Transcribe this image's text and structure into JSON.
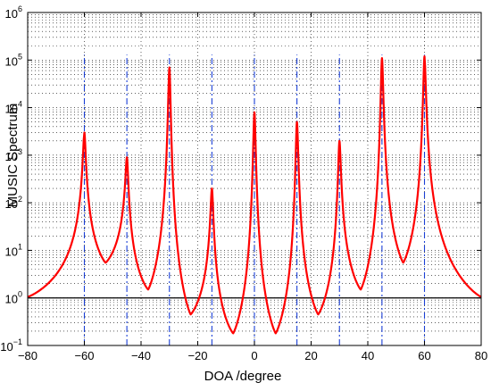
{
  "chart_data": {
    "type": "line",
    "xlabel": "DOA /degree",
    "ylabel": "MUSIC Spectrum",
    "xlim": [
      -80,
      80
    ],
    "ylim": [
      0.1,
      1000000
    ],
    "yscale": "log",
    "grid": "dotted",
    "x_ticks": [
      -80,
      -60,
      -40,
      -20,
      0,
      20,
      40,
      60,
      80
    ],
    "x_tick_labels": [
      "−80",
      "−60",
      "−40",
      "−20",
      "0",
      "20",
      "40",
      "60",
      "80"
    ],
    "y_ticks": [
      0.1,
      1,
      10,
      100,
      1000,
      10000,
      100000,
      1000000
    ],
    "y_tick_labels": [
      {
        "base": "10",
        "exp": "−1"
      },
      {
        "base": "10",
        "exp": "0"
      },
      {
        "base": "10",
        "exp": "1"
      },
      {
        "base": "10",
        "exp": "2"
      },
      {
        "base": "10",
        "exp": "3"
      },
      {
        "base": "10",
        "exp": "4"
      },
      {
        "base": "10",
        "exp": "5"
      },
      {
        "base": "10",
        "exp": "6"
      }
    ],
    "reference_line": {
      "y": 1,
      "color": "#000000"
    },
    "true_doa_lines": {
      "x": [
        -60,
        -45,
        -30,
        -15,
        0,
        15,
        30,
        45,
        60
      ],
      "y_top": 130000,
      "color": "#1a3fd6",
      "style": "dash-dot"
    },
    "spectrum": {
      "color": "#ff0000",
      "peaks": [
        {
          "x": -60,
          "y": 3000
        },
        {
          "x": -45,
          "y": 900
        },
        {
          "x": -30,
          "y": 70000
        },
        {
          "x": -15,
          "y": 200
        },
        {
          "x": 0,
          "y": 8000
        },
        {
          "x": 15,
          "y": 5000
        },
        {
          "x": 30,
          "y": 2000
        },
        {
          "x": 45,
          "y": 110000
        },
        {
          "x": 60,
          "y": 120000
        }
      ],
      "valleys": [
        {
          "x": -80,
          "y": 1.05
        },
        {
          "x": -52.5,
          "y": 5.5
        },
        {
          "x": -37.5,
          "y": 1.5
        },
        {
          "x": -22.5,
          "y": 0.45
        },
        {
          "x": -7.5,
          "y": 0.18
        },
        {
          "x": 7.5,
          "y": 0.18
        },
        {
          "x": 22.5,
          "y": 0.45
        },
        {
          "x": 37.5,
          "y": 1.5
        },
        {
          "x": 52.5,
          "y": 5.5
        },
        {
          "x": 80,
          "y": 1.05
        }
      ]
    }
  }
}
